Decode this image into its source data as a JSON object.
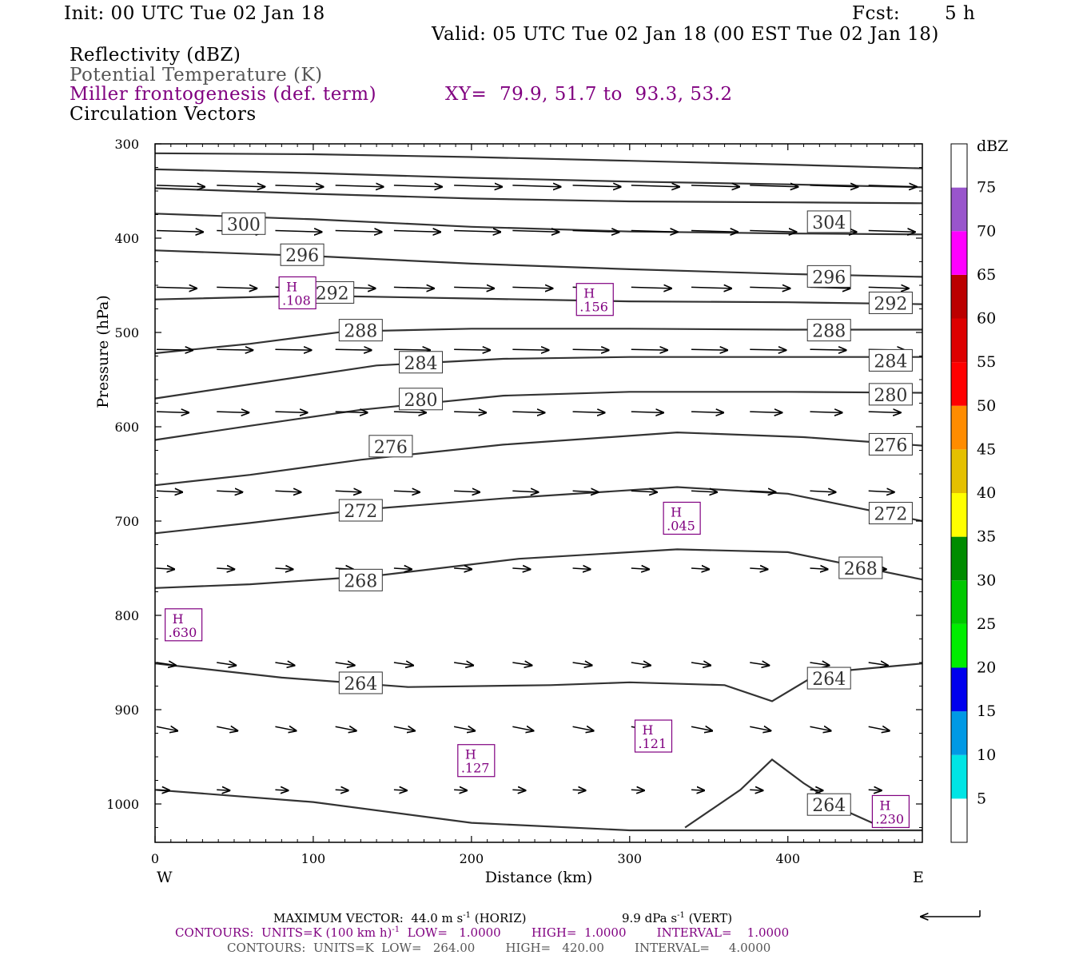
{
  "header": {
    "init": "Init: 00 UTC Tue 02 Jan 18",
    "fcst_label": "Fcst:",
    "fcst_value": "5 h",
    "valid": "Valid: 05 UTC Tue 02 Jan 18 (00 EST Tue 02 Jan 18)",
    "field1": "Reflectivity (dBZ)",
    "field2": "Potential Temperature (K)",
    "field3": "Miller frontogenesis (def. term)",
    "xy": "XY=  79.9, 51.7 to  93.3, 53.2",
    "field4": "Circulation Vectors"
  },
  "colors": {
    "theta_line": "#333333",
    "fronto": "#800080",
    "vector": "#000000"
  },
  "chart_data": {
    "type": "cross-section",
    "ylabel": "Pressure (hPa)",
    "xlabel": "Distance (km)",
    "xlim": [
      0,
      485
    ],
    "ylim": [
      1040,
      300
    ],
    "x_ticks": [
      0,
      100,
      200,
      300,
      400
    ],
    "y_ticks": [
      300,
      400,
      500,
      600,
      700,
      800,
      900,
      1000
    ],
    "x_end_labels": {
      "left": "W",
      "right": "E"
    },
    "theta_contours": [
      {
        "label": "",
        "points": [
          [
            0,
            310
          ],
          [
            100,
            311
          ],
          [
            200,
            314
          ],
          [
            300,
            318
          ],
          [
            400,
            322
          ],
          [
            485,
            326
          ]
        ]
      },
      {
        "label": "",
        "points": [
          [
            0,
            327
          ],
          [
            100,
            331
          ],
          [
            200,
            336
          ],
          [
            300,
            340
          ],
          [
            400,
            343
          ],
          [
            485,
            346
          ]
        ]
      },
      {
        "label": "",
        "points": [
          [
            0,
            347
          ],
          [
            100,
            353
          ],
          [
            200,
            358
          ],
          [
            300,
            361
          ],
          [
            400,
            362
          ],
          [
            485,
            363
          ]
        ]
      },
      {
        "label": "300",
        "points": [
          [
            0,
            374
          ],
          [
            100,
            380
          ],
          [
            200,
            388
          ],
          [
            300,
            393
          ],
          [
            400,
            395
          ],
          [
            485,
            396
          ]
        ],
        "label_at": [
          [
            56,
            385
          ]
        ]
      },
      {
        "label": "304",
        "points": [
          [
            0,
            374
          ],
          [
            100,
            380
          ],
          [
            200,
            388
          ],
          [
            300,
            393
          ],
          [
            400,
            395
          ],
          [
            485,
            396
          ]
        ],
        "label_at": [
          [
            426,
            383
          ]
        ]
      },
      {
        "label": "296",
        "points": [
          [
            0,
            413
          ],
          [
            100,
            419
          ],
          [
            200,
            427
          ],
          [
            300,
            433
          ],
          [
            400,
            438
          ],
          [
            485,
            441
          ]
        ],
        "label_at": [
          [
            93,
            418
          ],
          [
            426,
            441
          ]
        ]
      },
      {
        "label": "292",
        "points": [
          [
            0,
            465
          ],
          [
            100,
            461
          ],
          [
            200,
            464
          ],
          [
            300,
            467
          ],
          [
            400,
            468
          ],
          [
            485,
            470
          ]
        ],
        "label_at": [
          [
            112,
            458
          ],
          [
            465,
            469
          ]
        ]
      },
      {
        "label": "288",
        "points": [
          [
            0,
            522
          ],
          [
            60,
            512
          ],
          [
            120,
            499
          ],
          [
            200,
            496
          ],
          [
            300,
            496
          ],
          [
            400,
            497
          ],
          [
            485,
            497
          ]
        ],
        "label_at": [
          [
            130,
            498
          ],
          [
            426,
            498
          ]
        ]
      },
      {
        "label": "284",
        "points": [
          [
            0,
            570
          ],
          [
            60,
            555
          ],
          [
            140,
            535
          ],
          [
            220,
            528
          ],
          [
            300,
            526
          ],
          [
            400,
            526
          ],
          [
            485,
            526
          ]
        ],
        "label_at": [
          [
            168,
            532
          ],
          [
            465,
            530
          ]
        ]
      },
      {
        "label": "280",
        "points": [
          [
            0,
            614
          ],
          [
            60,
            599
          ],
          [
            130,
            582
          ],
          [
            220,
            567
          ],
          [
            300,
            563
          ],
          [
            400,
            563
          ],
          [
            485,
            564
          ]
        ],
        "label_at": [
          [
            168,
            571
          ],
          [
            465,
            566
          ]
        ]
      },
      {
        "label": "276",
        "points": [
          [
            0,
            662
          ],
          [
            60,
            651
          ],
          [
            130,
            635
          ],
          [
            220,
            619
          ],
          [
            330,
            606
          ],
          [
            410,
            611
          ],
          [
            485,
            620
          ]
        ],
        "label_at": [
          [
            149,
            621
          ],
          [
            465,
            619
          ]
        ]
      },
      {
        "label": "272",
        "points": [
          [
            0,
            713
          ],
          [
            60,
            702
          ],
          [
            130,
            688
          ],
          [
            220,
            676
          ],
          [
            330,
            664
          ],
          [
            400,
            671
          ],
          [
            485,
            700
          ]
        ],
        "label_at": [
          [
            130,
            689
          ],
          [
            465,
            692
          ]
        ]
      },
      {
        "label": "268",
        "points": [
          [
            0,
            771
          ],
          [
            60,
            767
          ],
          [
            140,
            758
          ],
          [
            230,
            740
          ],
          [
            330,
            730
          ],
          [
            400,
            733
          ],
          [
            485,
            762
          ]
        ],
        "label_at": [
          [
            130,
            763
          ],
          [
            446,
            750
          ]
        ]
      },
      {
        "label": "264",
        "points": [
          [
            0,
            851
          ],
          [
            80,
            866
          ],
          [
            160,
            876
          ],
          [
            250,
            874
          ],
          [
            300,
            871
          ],
          [
            360,
            874
          ],
          [
            390,
            891
          ],
          [
            420,
            861
          ],
          [
            485,
            851
          ]
        ],
        "label_at": [
          [
            130,
            872
          ],
          [
            426,
            867
          ]
        ]
      },
      {
        "label": "264",
        "points": [
          [
            335,
            1025
          ],
          [
            370,
            985
          ],
          [
            390,
            953
          ],
          [
            410,
            978
          ],
          [
            440,
            1010
          ],
          [
            460,
            1025
          ]
        ],
        "label_at": [
          [
            426,
            1001
          ]
        ]
      },
      {
        "label": "",
        "points": [
          [
            0,
            985
          ],
          [
            100,
            998
          ],
          [
            200,
            1020
          ],
          [
            300,
            1028
          ],
          [
            400,
            1028
          ],
          [
            485,
            1028
          ]
        ]
      }
    ],
    "fronto_maxima": [
      {
        "letter": "H",
        "value": ".630",
        "x": 18,
        "p": 810
      },
      {
        "letter": "H",
        "value": ".108",
        "x": 90,
        "p": 458
      },
      {
        "letter": "H",
        "value": ".156",
        "x": 278,
        "p": 465
      },
      {
        "letter": "H",
        "value": ".045",
        "x": 333,
        "p": 697
      },
      {
        "letter": "H",
        "value": ".121",
        "x": 315,
        "p": 928
      },
      {
        "letter": "H",
        "value": ".127",
        "x": 203,
        "p": 954
      },
      {
        "letter": "H",
        "value": ".230",
        "x": 465,
        "p": 1008
      }
    ],
    "vectors": [
      {
        "p": 344,
        "x": [
          0,
          38,
          75,
          113,
          150,
          188,
          225,
          263,
          300,
          338,
          375,
          413,
          450
        ],
        "u": 1.0,
        "w": 0.03,
        "len": 60
      },
      {
        "p": 392,
        "x": [
          0,
          38,
          75,
          113,
          150,
          188,
          225,
          263,
          300,
          338,
          375,
          413,
          450
        ],
        "u": 1.0,
        "w": 0.03,
        "len": 58
      },
      {
        "p": 452,
        "x": [
          0,
          38,
          75,
          113,
          150,
          188,
          225,
          263,
          300,
          338,
          375,
          413,
          450
        ],
        "u": 1.0,
        "w": 0.03,
        "len": 50
      },
      {
        "p": 518,
        "x": [
          0,
          38,
          75,
          113,
          150,
          188,
          225,
          263,
          300,
          338,
          375,
          413,
          450
        ],
        "u": 1.0,
        "w": 0.02,
        "len": 45
      },
      {
        "p": 584,
        "x": [
          0,
          38,
          75,
          113,
          150,
          188,
          225,
          263,
          300,
          338,
          375,
          413,
          450
        ],
        "u": 1.0,
        "w": 0.03,
        "len": 40
      },
      {
        "p": 668,
        "x": [
          0,
          38,
          75,
          113,
          150,
          188,
          225,
          263,
          300,
          338,
          375,
          413,
          450
        ],
        "u": 1.0,
        "w": 0.05,
        "len": 32
      },
      {
        "p": 750,
        "x": [
          0,
          38,
          75,
          113,
          150,
          188,
          225,
          263,
          300,
          338,
          375,
          413,
          450
        ],
        "u": 1.0,
        "w": 0.06,
        "len": 22
      },
      {
        "p": 850,
        "x": [
          0,
          38,
          75,
          113,
          150,
          188,
          225,
          263,
          300,
          338,
          375,
          413,
          450
        ],
        "u": 1.0,
        "w": 0.15,
        "len": 24
      },
      {
        "p": 918,
        "x": [
          0,
          38,
          75,
          113,
          150,
          188,
          225,
          263,
          300,
          338,
          375,
          413,
          450
        ],
        "u": 1.0,
        "w": 0.2,
        "len": 26
      },
      {
        "p": 985,
        "x": [
          0,
          38,
          75,
          113,
          150,
          188,
          225,
          263,
          300,
          338,
          375,
          413,
          450
        ],
        "u": 1.0,
        "w": 0.05,
        "len": 16
      }
    ]
  },
  "colorbar": {
    "title": "dBZ",
    "labels": [
      "5",
      "10",
      "15",
      "20",
      "25",
      "30",
      "35",
      "40",
      "45",
      "50",
      "55",
      "60",
      "65",
      "70",
      "75"
    ],
    "colors": [
      "#ffffff",
      "#00e5e5",
      "#0099e5",
      "#0000ee",
      "#00ee00",
      "#00c800",
      "#008c00",
      "#ffff00",
      "#e5c000",
      "#ff8c00",
      "#ff0000",
      "#dd0000",
      "#bb0000",
      "#ff00ff",
      "#9955cc",
      "#ffffff"
    ]
  },
  "footer": {
    "max_vector": "MAXIMUM VECTOR:  44.0 m s",
    "max_vector_exp": "-1",
    "max_vector_h": " (HORIZ)",
    "vert": "9.9 dPa s",
    "vert_exp": "-1",
    "vert_tail": " (VERT)",
    "contours1_a": "CONTOURS:  UNITS=K (100 km h)",
    "contours1_exp": "-1",
    "contours1_b": "  LOW=   1.0000        HIGH=  1.0000        INTERVAL=    1.0000",
    "contours2": "CONTOURS:  UNITS=K  LOW=   264.00        HIGH=   420.00        INTERVAL=     4.0000"
  }
}
